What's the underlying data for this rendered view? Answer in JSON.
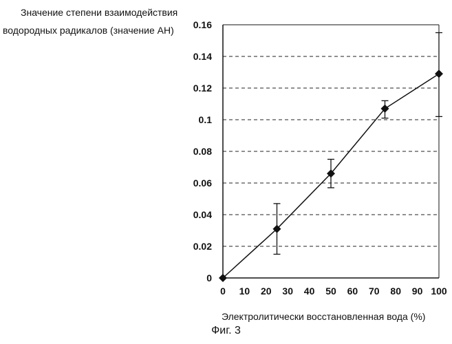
{
  "figure": {
    "caption": "Фиг. 3"
  },
  "chart_data": {
    "type": "line",
    "title": "",
    "ylabel_lines": [
      "Значение степени взаимодействия",
      "водородных радикалов (значение АН)"
    ],
    "xlabel": "Электролитически  восстановленная вода (%)",
    "xlim": [
      0,
      100
    ],
    "ylim": [
      0,
      0.16
    ],
    "x_ticks": [
      "0",
      "10",
      "20",
      "30",
      "40",
      "50",
      "60",
      "70",
      "80",
      "90",
      "100"
    ],
    "y_ticks": [
      "0",
      "0.02",
      "0.04",
      "0.06",
      "0.08",
      "0.1",
      "0.12",
      "0.14",
      "0.16"
    ],
    "grid": {
      "horizontal": true,
      "style": "dashed"
    },
    "series": [
      {
        "x": [
          0,
          25,
          50,
          75,
          100
        ],
        "y": [
          0,
          0.031,
          0.066,
          0.107,
          0.129
        ],
        "error_low": [
          null,
          0.015,
          0.057,
          0.101,
          0.102
        ],
        "error_high": [
          null,
          0.047,
          0.075,
          0.112,
          0.155
        ],
        "marker": "diamond",
        "color": "#111111"
      }
    ]
  }
}
